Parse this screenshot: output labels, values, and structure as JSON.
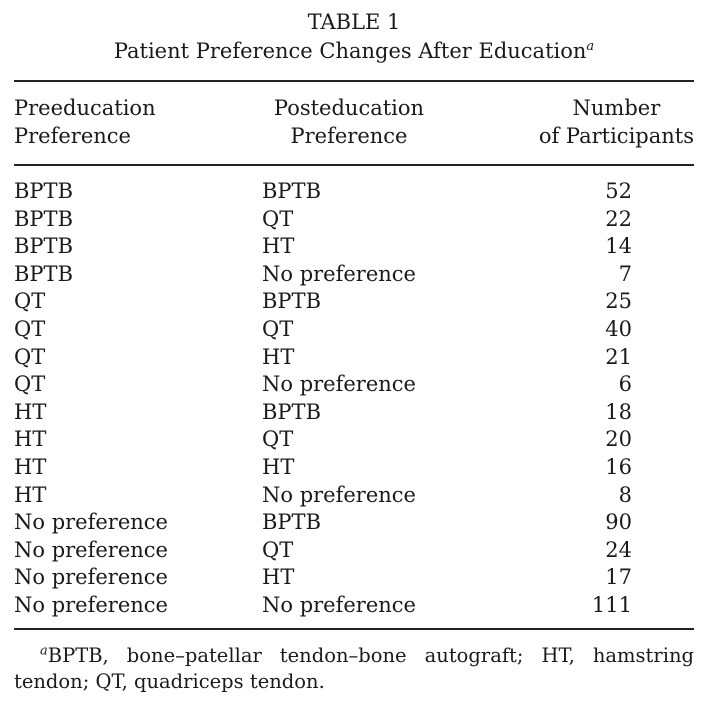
{
  "title": {
    "label": "TABLE 1",
    "text": "Patient Preference Changes After Education",
    "footnote_marker": "a"
  },
  "header": {
    "col1": {
      "line1": "Preeducation",
      "line2": "Preference"
    },
    "col2": {
      "line1": "Posteducation",
      "line2": "Preference"
    },
    "col3": {
      "line1": "Number",
      "line2": "of Participants"
    }
  },
  "rows": [
    {
      "pre": "BPTB",
      "post": "BPTB",
      "n": "52"
    },
    {
      "pre": "BPTB",
      "post": "QT",
      "n": "22"
    },
    {
      "pre": "BPTB",
      "post": "HT",
      "n": "14"
    },
    {
      "pre": "BPTB",
      "post": "No preference",
      "n": "7"
    },
    {
      "pre": "QT",
      "post": "BPTB",
      "n": "25"
    },
    {
      "pre": "QT",
      "post": "QT",
      "n": "40"
    },
    {
      "pre": "QT",
      "post": "HT",
      "n": "21"
    },
    {
      "pre": "QT",
      "post": "No preference",
      "n": "6"
    },
    {
      "pre": "HT",
      "post": "BPTB",
      "n": "18"
    },
    {
      "pre": "HT",
      "post": "QT",
      "n": "20"
    },
    {
      "pre": "HT",
      "post": "HT",
      "n": "16"
    },
    {
      "pre": "HT",
      "post": "No preference",
      "n": "8"
    },
    {
      "pre": "No preference",
      "post": "BPTB",
      "n": "90"
    },
    {
      "pre": "No preference",
      "post": "QT",
      "n": "24"
    },
    {
      "pre": "No preference",
      "post": "HT",
      "n": "17"
    },
    {
      "pre": "No preference",
      "post": "No preference",
      "n": "111"
    }
  ],
  "footnote": {
    "marker": "a",
    "line1": "BPTB, bone–patellar tendon–bone autograft; HT, hamstring",
    "line2": "tendon; QT, quadriceps tendon."
  },
  "colors": {
    "text": "#1a1a1a",
    "background": "#ffffff",
    "rule": "#222222"
  }
}
